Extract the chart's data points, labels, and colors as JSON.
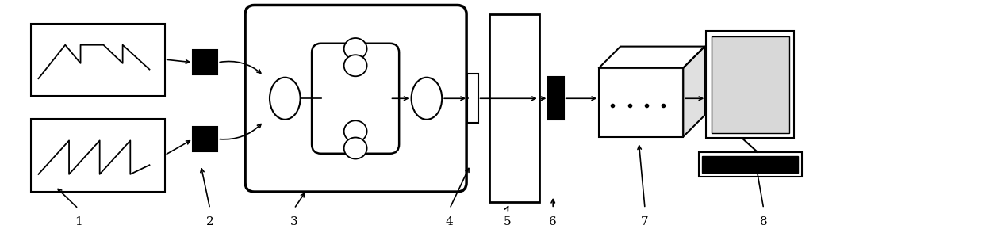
{
  "bg_color": "#ffffff",
  "lc": "#000000",
  "fig_w": 12.38,
  "fig_h": 2.89,
  "dpi": 100
}
